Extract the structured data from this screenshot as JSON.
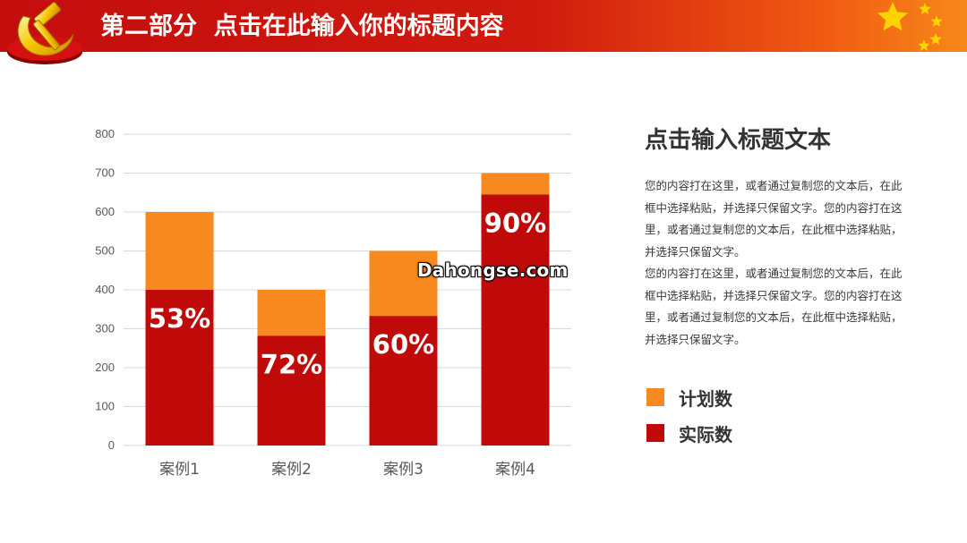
{
  "header": {
    "title": "第二部分  点击在此输入你的标题内容"
  },
  "colors": {
    "plan": "#f7891e",
    "actual": "#c00a0a",
    "header_red": "#c40d0d",
    "star_yellow": "#ffd200"
  },
  "icons": {
    "emblem": "hammer-sickle-emblem",
    "stars": "five-stars-icon"
  },
  "chart_data": {
    "type": "bar",
    "stacked": true,
    "categories": [
      "案例1",
      "案例2",
      "案例3",
      "案例4"
    ],
    "series": [
      {
        "name": "实际数",
        "values": [
          400,
          282,
          333,
          645
        ]
      },
      {
        "name": "计划数",
        "values": [
          200,
          118,
          167,
          55
        ]
      }
    ],
    "totals": [
      600,
      400,
      500,
      700
    ],
    "data_labels": [
      "53%",
      "72%",
      "60%",
      "90%"
    ],
    "ylim": [
      0,
      800
    ],
    "yticks": [
      0,
      100,
      200,
      300,
      400,
      500,
      600,
      700,
      800
    ],
    "grid": true,
    "legend_position": "right"
  },
  "side": {
    "title": "点击输入标题文本",
    "paragraph1": "您的内容打在这里，或者通过复制您的文本后，在此框中选择粘贴，并选择只保留文字。您的内容打在这里，或者通过复制您的文本后，在此框中选择粘贴，并选择只保留文字。",
    "paragraph2": "您的内容打在这里，或者通过复制您的文本后，在此框中选择粘贴，并选择只保留文字。您的内容打在这里，或者通过复制您的文本后，在此框中选择粘贴，并选择只保留文字。"
  },
  "legend": {
    "plan_label": "计划数",
    "actual_label": "实际数"
  },
  "watermark": "Dahongse.com"
}
